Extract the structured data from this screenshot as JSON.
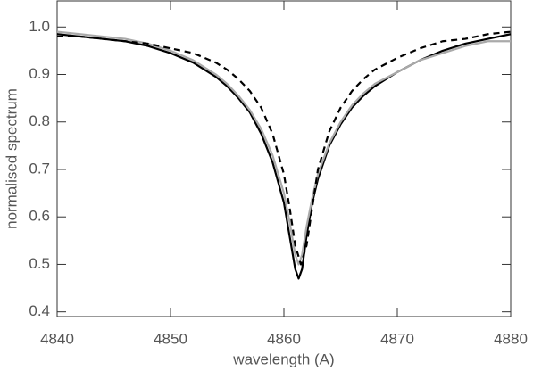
{
  "chart_data": {
    "type": "line",
    "xlabel": "wavelength (A)",
    "ylabel": "normalised spectrum",
    "xlim": [
      4840,
      4880
    ],
    "xticks": [
      4840,
      4850,
      4860,
      4870,
      4880
    ],
    "ylim": [
      0.39,
      1.055
    ],
    "yticks": [
      0.4,
      0.5,
      0.6,
      0.7,
      0.8,
      0.9,
      {
        "value": 1,
        "label": "1.0"
      }
    ],
    "series": [
      {
        "color": "#000000",
        "linestyle": "solid",
        "x": [
          4840,
          4842,
          4844,
          4846,
          4848,
          4850,
          4852,
          4854,
          4855,
          4856,
          4857,
          4858,
          4859,
          4860,
          4860.5,
          4861,
          4861.3,
          4861.6,
          4862,
          4862.5,
          4863,
          4864,
          4865,
          4866,
          4867,
          4868,
          4870,
          4872,
          4874,
          4876,
          4878,
          4880
        ],
        "values": [
          0.985,
          0.98,
          0.975,
          0.97,
          0.96,
          0.945,
          0.925,
          0.895,
          0.875,
          0.85,
          0.82,
          0.775,
          0.715,
          0.63,
          0.56,
          0.49,
          0.47,
          0.49,
          0.56,
          0.63,
          0.68,
          0.75,
          0.795,
          0.83,
          0.855,
          0.875,
          0.905,
          0.93,
          0.95,
          0.965,
          0.975,
          0.985
        ]
      },
      {
        "color": "#aaaaaa",
        "linestyle": "solid",
        "x": [
          4840,
          4842,
          4844,
          4846,
          4848,
          4850,
          4852,
          4854,
          4855,
          4856,
          4857,
          4858,
          4859,
          4860,
          4860.5,
          4861,
          4861.3,
          4861.6,
          4862,
          4862.5,
          4863,
          4864,
          4865,
          4866,
          4867,
          4868,
          4870,
          4872,
          4874,
          4876,
          4878,
          4880
        ],
        "values": [
          0.99,
          0.985,
          0.98,
          0.975,
          0.965,
          0.95,
          0.93,
          0.9,
          0.88,
          0.855,
          0.825,
          0.785,
          0.73,
          0.65,
          0.59,
          0.52,
          0.5,
          0.52,
          0.58,
          0.64,
          0.69,
          0.755,
          0.8,
          0.835,
          0.86,
          0.88,
          0.905,
          0.93,
          0.945,
          0.96,
          0.97,
          0.97
        ]
      },
      {
        "color": "#000000",
        "linestyle": "dashed",
        "x": [
          4840,
          4842,
          4844,
          4846,
          4848,
          4850,
          4852,
          4854,
          4855,
          4856,
          4857,
          4858,
          4859,
          4860,
          4860.5,
          4861,
          4861.5,
          4862,
          4862.5,
          4863,
          4864,
          4865,
          4866,
          4867,
          4868,
          4870,
          4872,
          4874,
          4876,
          4878,
          4880
        ],
        "values": [
          0.98,
          0.98,
          0.975,
          0.97,
          0.965,
          0.955,
          0.945,
          0.925,
          0.91,
          0.89,
          0.865,
          0.83,
          0.775,
          0.69,
          0.62,
          0.54,
          0.5,
          0.54,
          0.62,
          0.7,
          0.78,
          0.83,
          0.865,
          0.89,
          0.91,
          0.935,
          0.955,
          0.97,
          0.975,
          0.985,
          0.99
        ]
      }
    ]
  }
}
